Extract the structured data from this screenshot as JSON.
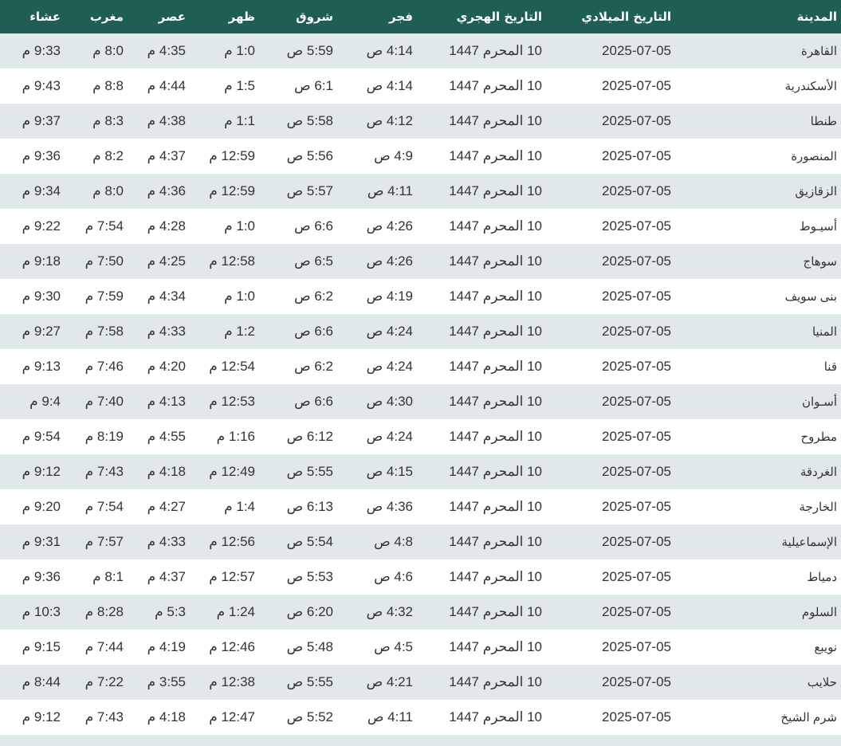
{
  "table": {
    "headers": [
      "المدينة",
      "التاريخ الميلادي",
      "التاريخ الهجري",
      "فجر",
      "شروق",
      "ظهر",
      "عصر",
      "مغرب",
      "عشاء"
    ],
    "rows": [
      [
        "القاهرة",
        "2025-07-05",
        "10 المحرم 1447",
        "4:14 ص",
        "5:59 ص",
        "1:0 م",
        "4:35 م",
        "8:0 م",
        "9:33 م"
      ],
      [
        "الأسكندرية",
        "2025-07-05",
        "10 المحرم 1447",
        "4:14 ص",
        "6:1 ص",
        "1:5 م",
        "4:44 م",
        "8:8 م",
        "9:43 م"
      ],
      [
        "طنطا",
        "2025-07-05",
        "10 المحرم 1447",
        "4:12 ص",
        "5:58 ص",
        "1:1 م",
        "4:38 م",
        "8:3 م",
        "9:37 م"
      ],
      [
        "المنصورة",
        "2025-07-05",
        "10 المحرم 1447",
        "4:9 ص",
        "5:56 ص",
        "12:59 م",
        "4:37 م",
        "8:2 م",
        "9:36 م"
      ],
      [
        "الزقازيق",
        "2025-07-05",
        "10 المحرم 1447",
        "4:11 ص",
        "5:57 ص",
        "12:59 م",
        "4:36 م",
        "8:0 م",
        "9:34 م"
      ],
      [
        "أسيـوط",
        "2025-07-05",
        "10 المحرم 1447",
        "4:26 ص",
        "6:6 ص",
        "1:0 م",
        "4:28 م",
        "7:54 م",
        "9:22 م"
      ],
      [
        "سوهاج",
        "2025-07-05",
        "10 المحرم 1447",
        "4:26 ص",
        "6:5 ص",
        "12:58 م",
        "4:25 م",
        "7:50 م",
        "9:18 م"
      ],
      [
        "بنى سويف",
        "2025-07-05",
        "10 المحرم 1447",
        "4:19 ص",
        "6:2 ص",
        "1:0 م",
        "4:34 م",
        "7:59 م",
        "9:30 م"
      ],
      [
        "المنيا",
        "2025-07-05",
        "10 المحرم 1447",
        "4:24 ص",
        "6:6 ص",
        "1:2 م",
        "4:33 م",
        "7:58 م",
        "9:27 م"
      ],
      [
        "قنا",
        "2025-07-05",
        "10 المحرم 1447",
        "4:24 ص",
        "6:2 ص",
        "12:54 م",
        "4:20 م",
        "7:46 م",
        "9:13 م"
      ],
      [
        "أسـوان",
        "2025-07-05",
        "10 المحرم 1447",
        "4:30 ص",
        "6:6 ص",
        "12:53 م",
        "4:13 م",
        "7:40 م",
        "9:4 م"
      ],
      [
        "مطروح",
        "2025-07-05",
        "10 المحرم 1447",
        "4:24 ص",
        "6:12 ص",
        "1:16 م",
        "4:55 م",
        "8:19 م",
        "9:54 م"
      ],
      [
        "الغردقة",
        "2025-07-05",
        "10 المحرم 1447",
        "4:15 ص",
        "5:55 ص",
        "12:49 م",
        "4:18 م",
        "7:43 م",
        "9:12 م"
      ],
      [
        "الخارجة",
        "2025-07-05",
        "10 المحرم 1447",
        "4:36 ص",
        "6:13 ص",
        "1:4 م",
        "4:27 م",
        "7:54 م",
        "9:20 م"
      ],
      [
        "الإسماعيلية",
        "2025-07-05",
        "10 المحرم 1447",
        "4:8 ص",
        "5:54 ص",
        "12:56 م",
        "4:33 م",
        "7:57 م",
        "9:31 م"
      ],
      [
        "دمياط",
        "2025-07-05",
        "10 المحرم 1447",
        "4:6 ص",
        "5:53 ص",
        "12:57 م",
        "4:37 م",
        "8:1 م",
        "9:36 م"
      ],
      [
        "السلوم",
        "2025-07-05",
        "10 المحرم 1447",
        "4:32 ص",
        "6:20 ص",
        "1:24 م",
        "5:3 م",
        "8:28 م",
        "10:3 م"
      ],
      [
        "نويبع",
        "2025-07-05",
        "10 المحرم 1447",
        "4:5 ص",
        "5:48 ص",
        "12:46 م",
        "4:19 م",
        "7:44 م",
        "9:15 م"
      ],
      [
        "حلايب",
        "2025-07-05",
        "10 المحرم 1447",
        "4:21 ص",
        "5:55 ص",
        "12:38 م",
        "3:55 م",
        "7:22 م",
        "8:44 م"
      ],
      [
        "شرم الشيخ",
        "2025-07-05",
        "10 المحرم 1447",
        "4:11 ص",
        "5:52 ص",
        "12:47 م",
        "4:18 م",
        "7:43 م",
        "9:12 م"
      ]
    ]
  },
  "colors": {
    "header_bg": "#1f5e55",
    "row_alt_bg": "#e1e8ea"
  }
}
